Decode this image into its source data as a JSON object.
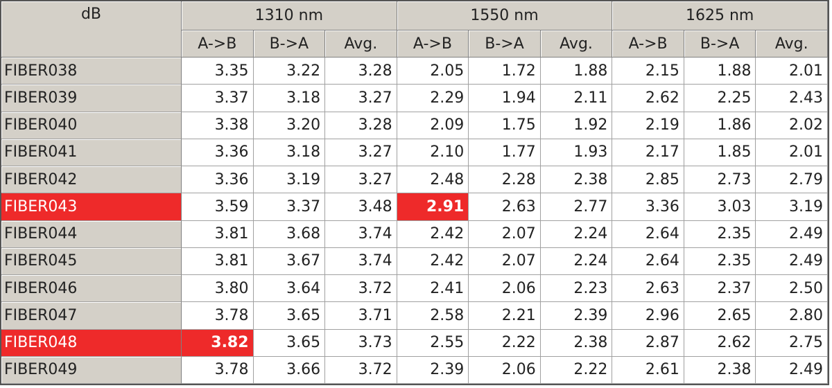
{
  "table": {
    "corner": "dB",
    "groups": [
      "1310 nm",
      "1550 nm",
      "1625 nm"
    ],
    "subheaders": [
      "A->B",
      "B->A",
      "Avg."
    ],
    "rows": [
      {
        "label": "FIBER038",
        "cells": [
          "3.35",
          "3.22",
          "3.28",
          "2.05",
          "1.72",
          "1.88",
          "2.15",
          "1.88",
          "2.01"
        ]
      },
      {
        "label": "FIBER039",
        "cells": [
          "3.37",
          "3.18",
          "3.27",
          "2.29",
          "1.94",
          "2.11",
          "2.62",
          "2.25",
          "2.43"
        ]
      },
      {
        "label": "FIBER040",
        "cells": [
          "3.38",
          "3.20",
          "3.28",
          "2.09",
          "1.75",
          "1.92",
          "2.19",
          "1.86",
          "2.02"
        ]
      },
      {
        "label": "FIBER041",
        "cells": [
          "3.36",
          "3.18",
          "3.27",
          "2.10",
          "1.77",
          "1.93",
          "2.17",
          "1.85",
          "2.01"
        ]
      },
      {
        "label": "FIBER042",
        "cells": [
          "3.36",
          "3.19",
          "3.27",
          "2.48",
          "2.28",
          "2.38",
          "2.85",
          "2.73",
          "2.79"
        ]
      },
      {
        "label": "FIBER043",
        "cells": [
          "3.59",
          "3.37",
          "3.48",
          "2.91",
          "2.63",
          "2.77",
          "3.36",
          "3.03",
          "3.19"
        ],
        "flagged": [
          3
        ]
      },
      {
        "label": "FIBER044",
        "cells": [
          "3.81",
          "3.68",
          "3.74",
          "2.42",
          "2.07",
          "2.24",
          "2.64",
          "2.35",
          "2.49"
        ]
      },
      {
        "label": "FIBER045",
        "cells": [
          "3.81",
          "3.67",
          "3.74",
          "2.42",
          "2.07",
          "2.24",
          "2.64",
          "2.35",
          "2.49"
        ]
      },
      {
        "label": "FIBER046",
        "cells": [
          "3.80",
          "3.64",
          "3.72",
          "2.41",
          "2.06",
          "2.23",
          "2.63",
          "2.37",
          "2.50"
        ]
      },
      {
        "label": "FIBER047",
        "cells": [
          "3.78",
          "3.65",
          "3.71",
          "2.58",
          "2.21",
          "2.39",
          "2.96",
          "2.65",
          "2.80"
        ]
      },
      {
        "label": "FIBER048",
        "cells": [
          "3.82",
          "3.65",
          "3.73",
          "2.55",
          "2.22",
          "2.38",
          "2.87",
          "2.62",
          "2.75"
        ],
        "flagged": [
          0
        ]
      },
      {
        "label": "FIBER049",
        "cells": [
          "3.78",
          "3.66",
          "3.72",
          "2.39",
          "2.06",
          "2.22",
          "2.61",
          "2.38",
          "2.49"
        ]
      }
    ],
    "flag_color": "#ee2a2a"
  }
}
